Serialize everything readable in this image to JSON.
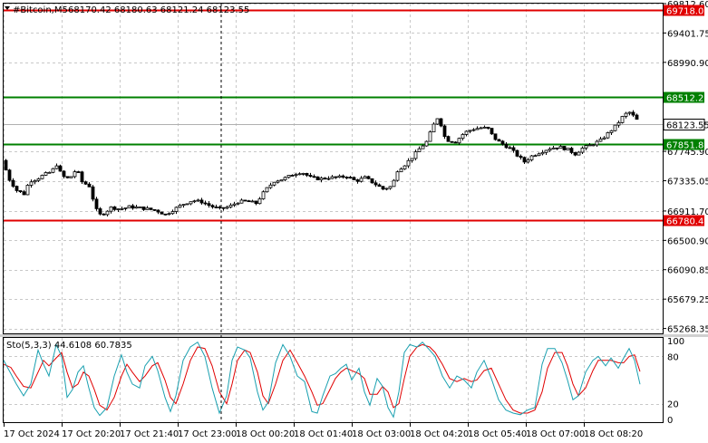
{
  "header": {
    "symbol_label": "#Bitcoin,M5",
    "ohlc_label": "68170.42 68180.63 68121.24 68123.55"
  },
  "chart_data": [
    {
      "type": "candlestick",
      "title": "#Bitcoin,M5  68170.42 68180.63 68121.24 68123.55",
      "ylim": [
        65200,
        69812.6
      ],
      "y_ticks": [
        "69812.60",
        "69401.75",
        "68990.90",
        "68512.23",
        "68123.55",
        "67851.85",
        "67745.90",
        "67335.05",
        "66911.70",
        "66780.47",
        "66500.90",
        "66090.85",
        "65679.25",
        "65268.35"
      ],
      "axis_ticks": [
        69812.6,
        69401.75,
        68990.9,
        67745.9,
        67335.05,
        66911.7,
        66500.9,
        66090.85,
        65679.25,
        65268.35
      ],
      "x_ticks": [
        "17 Oct 2024",
        "17 Oct 20:20",
        "17 Oct 21:40",
        "17 Oct 23:00",
        "18 Oct 00:20",
        "18 Oct 01:40",
        "18 Oct 03:00",
        "18 Oct 04:20",
        "18 Oct 05:40",
        "18 Oct 07:00",
        "18 Oct 08:20"
      ],
      "levels": [
        {
          "value": 69718.02,
          "label": "69718.02",
          "color": "#e00000"
        },
        {
          "value": 68512.23,
          "label": "68512.23",
          "color": "#008000"
        },
        {
          "value": 67851.85,
          "label": "67851.85",
          "color": "#008000"
        },
        {
          "value": 66780.47,
          "label": "66780.47",
          "color": "#e00000"
        }
      ],
      "current_price": {
        "value": 68123.55,
        "label": "68123.55"
      },
      "close_path": [
        [
          0,
          67620
        ],
        [
          8,
          67350
        ],
        [
          16,
          67200
        ],
        [
          24,
          67150
        ],
        [
          30,
          67330
        ],
        [
          38,
          67360
        ],
        [
          46,
          67420
        ],
        [
          54,
          67460
        ],
        [
          60,
          67560
        ],
        [
          66,
          67400
        ],
        [
          74,
          67360
        ],
        [
          82,
          67500
        ],
        [
          88,
          67320
        ],
        [
          96,
          67260
        ],
        [
          102,
          67000
        ],
        [
          106,
          66850
        ],
        [
          112,
          66880
        ],
        [
          120,
          66960
        ],
        [
          130,
          66940
        ],
        [
          140,
          66970
        ],
        [
          150,
          66960
        ],
        [
          160,
          66940
        ],
        [
          170,
          66920
        ],
        [
          180,
          66860
        ],
        [
          190,
          66940
        ],
        [
          200,
          67010
        ],
        [
          210,
          67060
        ],
        [
          220,
          67040
        ],
        [
          230,
          66980
        ],
        [
          240,
          66940
        ],
        [
          250,
          66970
        ],
        [
          260,
          67040
        ],
        [
          270,
          67050
        ],
        [
          280,
          67020
        ],
        [
          290,
          67200
        ],
        [
          300,
          67330
        ],
        [
          310,
          67360
        ],
        [
          320,
          67420
        ],
        [
          330,
          67460
        ],
        [
          340,
          67380
        ],
        [
          350,
          67360
        ],
        [
          360,
          67380
        ],
        [
          370,
          67380
        ],
        [
          380,
          67400
        ],
        [
          390,
          67330
        ],
        [
          400,
          67380
        ],
        [
          410,
          67300
        ],
        [
          420,
          67220
        ],
        [
          430,
          67260
        ],
        [
          436,
          67480
        ],
        [
          444,
          67560
        ],
        [
          452,
          67660
        ],
        [
          460,
          67780
        ],
        [
          468,
          67880
        ],
        [
          476,
          68120
        ],
        [
          482,
          68260
        ],
        [
          486,
          67980
        ],
        [
          492,
          67900
        ],
        [
          500,
          67880
        ],
        [
          510,
          68010
        ],
        [
          520,
          68060
        ],
        [
          530,
          68080
        ],
        [
          536,
          68060
        ],
        [
          542,
          67940
        ],
        [
          550,
          67860
        ],
        [
          560,
          67790
        ],
        [
          568,
          67690
        ],
        [
          576,
          67600
        ],
        [
          584,
          67680
        ],
        [
          594,
          67740
        ],
        [
          604,
          67790
        ],
        [
          614,
          67810
        ],
        [
          624,
          67770
        ],
        [
          632,
          67710
        ],
        [
          640,
          67790
        ],
        [
          650,
          67840
        ],
        [
          660,
          67900
        ],
        [
          670,
          68020
        ],
        [
          678,
          68120
        ],
        [
          686,
          68260
        ],
        [
          692,
          68290
        ],
        [
          698,
          68220
        ],
        [
          704,
          68123
        ]
      ],
      "indicator": {
        "label": "Sto(5,3,3) 44.6108 60.7835",
        "main_value": 44.6108,
        "signal_value": 60.7835,
        "ylim": [
          0,
          100
        ],
        "y_ticks": [
          "100",
          "80",
          "20",
          "0"
        ],
        "levels": [
          80,
          20
        ],
        "main_color": "#1aa0b0",
        "signal_color": "#e00000",
        "main": [
          [
            0,
            75
          ],
          [
            8,
            58
          ],
          [
            14,
            45
          ],
          [
            22,
            30
          ],
          [
            30,
            45
          ],
          [
            38,
            88
          ],
          [
            44,
            70
          ],
          [
            50,
            55
          ],
          [
            58,
            95
          ],
          [
            64,
            80
          ],
          [
            70,
            28
          ],
          [
            76,
            38
          ],
          [
            82,
            60
          ],
          [
            88,
            68
          ],
          [
            94,
            40
          ],
          [
            100,
            15
          ],
          [
            106,
            5
          ],
          [
            114,
            15
          ],
          [
            122,
            55
          ],
          [
            130,
            82
          ],
          [
            136,
            60
          ],
          [
            142,
            45
          ],
          [
            150,
            40
          ],
          [
            156,
            68
          ],
          [
            164,
            80
          ],
          [
            170,
            62
          ],
          [
            178,
            28
          ],
          [
            184,
            10
          ],
          [
            190,
            30
          ],
          [
            198,
            75
          ],
          [
            206,
            92
          ],
          [
            214,
            98
          ],
          [
            222,
            80
          ],
          [
            230,
            40
          ],
          [
            238,
            8
          ],
          [
            246,
            30
          ],
          [
            252,
            75
          ],
          [
            258,
            92
          ],
          [
            266,
            88
          ],
          [
            272,
            78
          ],
          [
            280,
            35
          ],
          [
            286,
            12
          ],
          [
            292,
            22
          ],
          [
            300,
            72
          ],
          [
            308,
            95
          ],
          [
            316,
            80
          ],
          [
            324,
            55
          ],
          [
            332,
            48
          ],
          [
            340,
            10
          ],
          [
            346,
            8
          ],
          [
            352,
            30
          ],
          [
            360,
            55
          ],
          [
            366,
            58
          ],
          [
            372,
            65
          ],
          [
            378,
            70
          ],
          [
            384,
            50
          ],
          [
            392,
            65
          ],
          [
            398,
            35
          ],
          [
            404,
            18
          ],
          [
            412,
            52
          ],
          [
            418,
            42
          ],
          [
            424,
            15
          ],
          [
            430,
            3
          ],
          [
            436,
            35
          ],
          [
            442,
            85
          ],
          [
            448,
            95
          ],
          [
            456,
            92
          ],
          [
            462,
            98
          ],
          [
            470,
            88
          ],
          [
            476,
            80
          ],
          [
            484,
            55
          ],
          [
            492,
            40
          ],
          [
            500,
            55
          ],
          [
            508,
            50
          ],
          [
            516,
            40
          ],
          [
            522,
            60
          ],
          [
            530,
            75
          ],
          [
            538,
            52
          ],
          [
            546,
            25
          ],
          [
            554,
            12
          ],
          [
            562,
            8
          ],
          [
            570,
            6
          ],
          [
            578,
            12
          ],
          [
            586,
            15
          ],
          [
            594,
            70
          ],
          [
            600,
            90
          ],
          [
            608,
            90
          ],
          [
            616,
            72
          ],
          [
            622,
            50
          ],
          [
            628,
            25
          ],
          [
            634,
            30
          ],
          [
            642,
            60
          ],
          [
            650,
            75
          ],
          [
            656,
            80
          ],
          [
            664,
            68
          ],
          [
            670,
            78
          ],
          [
            678,
            65
          ],
          [
            684,
            78
          ],
          [
            690,
            90
          ],
          [
            696,
            75
          ],
          [
            702,
            44.6
          ]
        ],
        "signal": [
          [
            0,
            70
          ],
          [
            8,
            66
          ],
          [
            14,
            55
          ],
          [
            22,
            42
          ],
          [
            30,
            40
          ],
          [
            38,
            60
          ],
          [
            44,
            75
          ],
          [
            50,
            68
          ],
          [
            58,
            78
          ],
          [
            64,
            85
          ],
          [
            70,
            60
          ],
          [
            76,
            40
          ],
          [
            82,
            45
          ],
          [
            88,
            60
          ],
          [
            94,
            55
          ],
          [
            100,
            38
          ],
          [
            106,
            18
          ],
          [
            114,
            12
          ],
          [
            122,
            28
          ],
          [
            130,
            55
          ],
          [
            136,
            70
          ],
          [
            142,
            60
          ],
          [
            150,
            48
          ],
          [
            156,
            55
          ],
          [
            164,
            68
          ],
          [
            170,
            72
          ],
          [
            178,
            50
          ],
          [
            184,
            28
          ],
          [
            190,
            20
          ],
          [
            198,
            45
          ],
          [
            206,
            75
          ],
          [
            214,
            92
          ],
          [
            222,
            90
          ],
          [
            230,
            68
          ],
          [
            238,
            35
          ],
          [
            246,
            20
          ],
          [
            252,
            45
          ],
          [
            258,
            75
          ],
          [
            266,
            88
          ],
          [
            272,
            85
          ],
          [
            280,
            60
          ],
          [
            286,
            30
          ],
          [
            292,
            20
          ],
          [
            300,
            45
          ],
          [
            308,
            75
          ],
          [
            316,
            88
          ],
          [
            324,
            72
          ],
          [
            332,
            55
          ],
          [
            340,
            35
          ],
          [
            346,
            18
          ],
          [
            352,
            20
          ],
          [
            360,
            38
          ],
          [
            366,
            52
          ],
          [
            372,
            60
          ],
          [
            378,
            65
          ],
          [
            384,
            62
          ],
          [
            392,
            58
          ],
          [
            398,
            52
          ],
          [
            404,
            32
          ],
          [
            412,
            32
          ],
          [
            418,
            42
          ],
          [
            424,
            35
          ],
          [
            430,
            15
          ],
          [
            436,
            20
          ],
          [
            442,
            52
          ],
          [
            448,
            80
          ],
          [
            456,
            92
          ],
          [
            462,
            95
          ],
          [
            470,
            92
          ],
          [
            476,
            85
          ],
          [
            484,
            70
          ],
          [
            492,
            52
          ],
          [
            500,
            48
          ],
          [
            508,
            52
          ],
          [
            516,
            48
          ],
          [
            522,
            50
          ],
          [
            530,
            62
          ],
          [
            538,
            65
          ],
          [
            546,
            45
          ],
          [
            554,
            25
          ],
          [
            562,
            12
          ],
          [
            570,
            8
          ],
          [
            578,
            8
          ],
          [
            586,
            12
          ],
          [
            594,
            35
          ],
          [
            600,
            65
          ],
          [
            608,
            85
          ],
          [
            616,
            85
          ],
          [
            622,
            68
          ],
          [
            628,
            45
          ],
          [
            634,
            30
          ],
          [
            642,
            40
          ],
          [
            650,
            62
          ],
          [
            656,
            75
          ],
          [
            664,
            75
          ],
          [
            670,
            75
          ],
          [
            678,
            72
          ],
          [
            684,
            72
          ],
          [
            690,
            80
          ],
          [
            696,
            82
          ],
          [
            702,
            60.8
          ]
        ]
      }
    }
  ]
}
